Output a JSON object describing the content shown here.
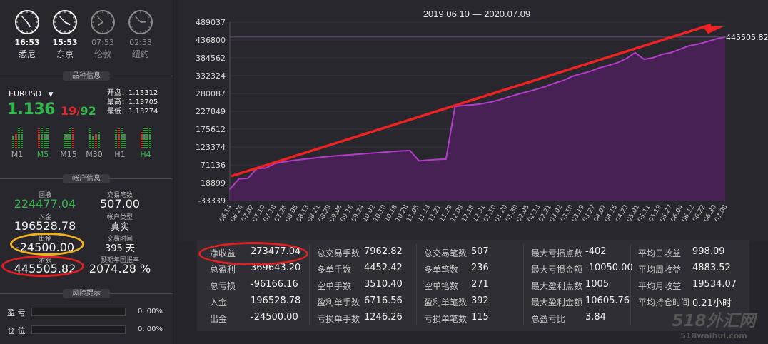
{
  "clocks": [
    {
      "time": "16:53",
      "city": "悉尼",
      "active": true,
      "h": 4,
      "m": 53
    },
    {
      "time": "15:53",
      "city": "东京",
      "active": true,
      "h": 3,
      "m": 53
    },
    {
      "time": "07:53",
      "city": "伦敦",
      "active": false,
      "h": 7,
      "m": 53
    },
    {
      "time": "02:53",
      "city": "纽约",
      "active": false,
      "h": 2,
      "m": 53
    }
  ],
  "sections": {
    "symbol_info": "品种信息",
    "account_info": "帐户信息",
    "risk": "风险提示"
  },
  "symbol": {
    "name": "EURUSD",
    "dropdown_icon": "caret-down-icon",
    "price": "1.136",
    "pip_a": "19",
    "pip_sep": "/",
    "pip_b": "92",
    "open_label": "开盘：1.13312",
    "high_label": "最高：1.13705",
    "low_label": "最低：1.13274",
    "timeframes": [
      "M1",
      "M5",
      "M15",
      "M30",
      "H1",
      "H4"
    ],
    "tf_active": [
      1,
      5
    ]
  },
  "account": {
    "drawdown_label": "回撤",
    "drawdown": "224477.04",
    "trades_label": "交易笔数",
    "trades": "507.00",
    "deposit_label": "入金",
    "deposit": "196528.78",
    "acct_type_label": "帐户类型",
    "acct_type": "真实",
    "withdraw_label": "出金",
    "withdraw": "-24500.00",
    "trade_time_label": "交易时间",
    "trade_time": "395 天",
    "balance_label": "余额",
    "balance": "445505.82",
    "annual_label": "预期年回报率",
    "annual": "2074.28 %"
  },
  "risk": {
    "rows": [
      {
        "label": "盈 亏",
        "pct": "0. 00%"
      },
      {
        "label": "仓 位",
        "pct": "0. 00%"
      }
    ]
  },
  "chart_data": {
    "type": "area",
    "title": "2019.06.10 — 2020.07.09",
    "last_value_label": "445505.82",
    "ylim": [
      -33339,
      489037
    ],
    "yticks": [
      "489037",
      "436800",
      "384562",
      "332324",
      "280087",
      "227849",
      "175612",
      "123374",
      "71136",
      "18899",
      "-33339"
    ],
    "xticks": [
      "06.14",
      "06.24",
      "07.02",
      "07.10",
      "07.18",
      "07.26",
      "08.05",
      "08.13",
      "08.21",
      "08.29",
      "09.06",
      "09.16",
      "09.24",
      "10.02",
      "10.10",
      "10.18",
      "10.28",
      "11.05",
      "11.13",
      "11.21",
      "11.29",
      "12.09",
      "12.18",
      "12.31",
      "01.10",
      "01.20",
      "01.30",
      "02.05",
      "02.13",
      "02.21",
      "03.02",
      "03.10",
      "03.19",
      "03.27",
      "04.07",
      "04.15",
      "04.23",
      "05.01",
      "05.11",
      "05.19",
      "05.27",
      "06.04",
      "06.12",
      "06.22",
      "06.30",
      "07.08"
    ],
    "series": [
      {
        "values": [
          0,
          30000,
          32000,
          60000,
          62000,
          75000,
          80000,
          84000,
          87000,
          90000,
          93000,
          96000,
          98000,
          100000,
          102000,
          104000,
          106000,
          108000,
          110000,
          112000,
          113000,
          83000,
          85000,
          87000,
          88000,
          242000,
          245000,
          247000,
          250000,
          255000,
          262000,
          270000,
          278000,
          285000,
          292000,
          300000,
          310000,
          318000,
          330000,
          338000,
          345000,
          355000,
          362000,
          370000,
          382000,
          400000,
          380000,
          385000,
          395000,
          400000,
          410000,
          420000,
          425000,
          432000,
          440000,
          445505
        ]
      }
    ],
    "trend_arrow": true,
    "line_color": "#b23cc8",
    "fill_color": "#4a2158",
    "arrow_color": "#ee2222"
  },
  "stats": {
    "col1": [
      [
        "净收益",
        "273477.04"
      ],
      [
        "总盈利",
        "369643.20"
      ],
      [
        "总亏损",
        "-96166.16"
      ],
      [
        "入金",
        "196528.78"
      ],
      [
        "出金",
        "-24500.00"
      ]
    ],
    "col2": [
      [
        "总交易手数",
        "7962.82"
      ],
      [
        "多单手数",
        "4452.42"
      ],
      [
        "空单手数",
        "3510.40"
      ],
      [
        "盈利单手数",
        "6716.56"
      ],
      [
        "亏损单手数",
        "1246.26"
      ]
    ],
    "col3": [
      [
        "总交易笔数",
        "507"
      ],
      [
        "多单笔数",
        "236"
      ],
      [
        "空单笔数",
        "271"
      ],
      [
        "盈利单笔数",
        "392"
      ],
      [
        "亏损单笔数",
        "115"
      ]
    ],
    "col4": [
      [
        "最大亏损点数",
        "-402"
      ],
      [
        "最大亏损金额",
        "-10050.00"
      ],
      [
        "最大盈利点数",
        "1005"
      ],
      [
        "最大盈利金额",
        "10605.76"
      ],
      [
        "总盈亏比",
        "3.84"
      ]
    ],
    "col5": [
      [
        "平均日收益",
        "998.09"
      ],
      [
        "平均周收益",
        "4883.52"
      ],
      [
        "平均月收益",
        "19534.07"
      ],
      [
        "平均持仓时间",
        "0.21小时"
      ]
    ]
  },
  "watermark": {
    "line1": "518外汇网",
    "line2": "518waihui.com"
  },
  "colors": {
    "green": "#2fb84a",
    "red": "#e8242b",
    "ellipse_red": "#e02020",
    "ellipse_yellow": "#f2b01e"
  }
}
